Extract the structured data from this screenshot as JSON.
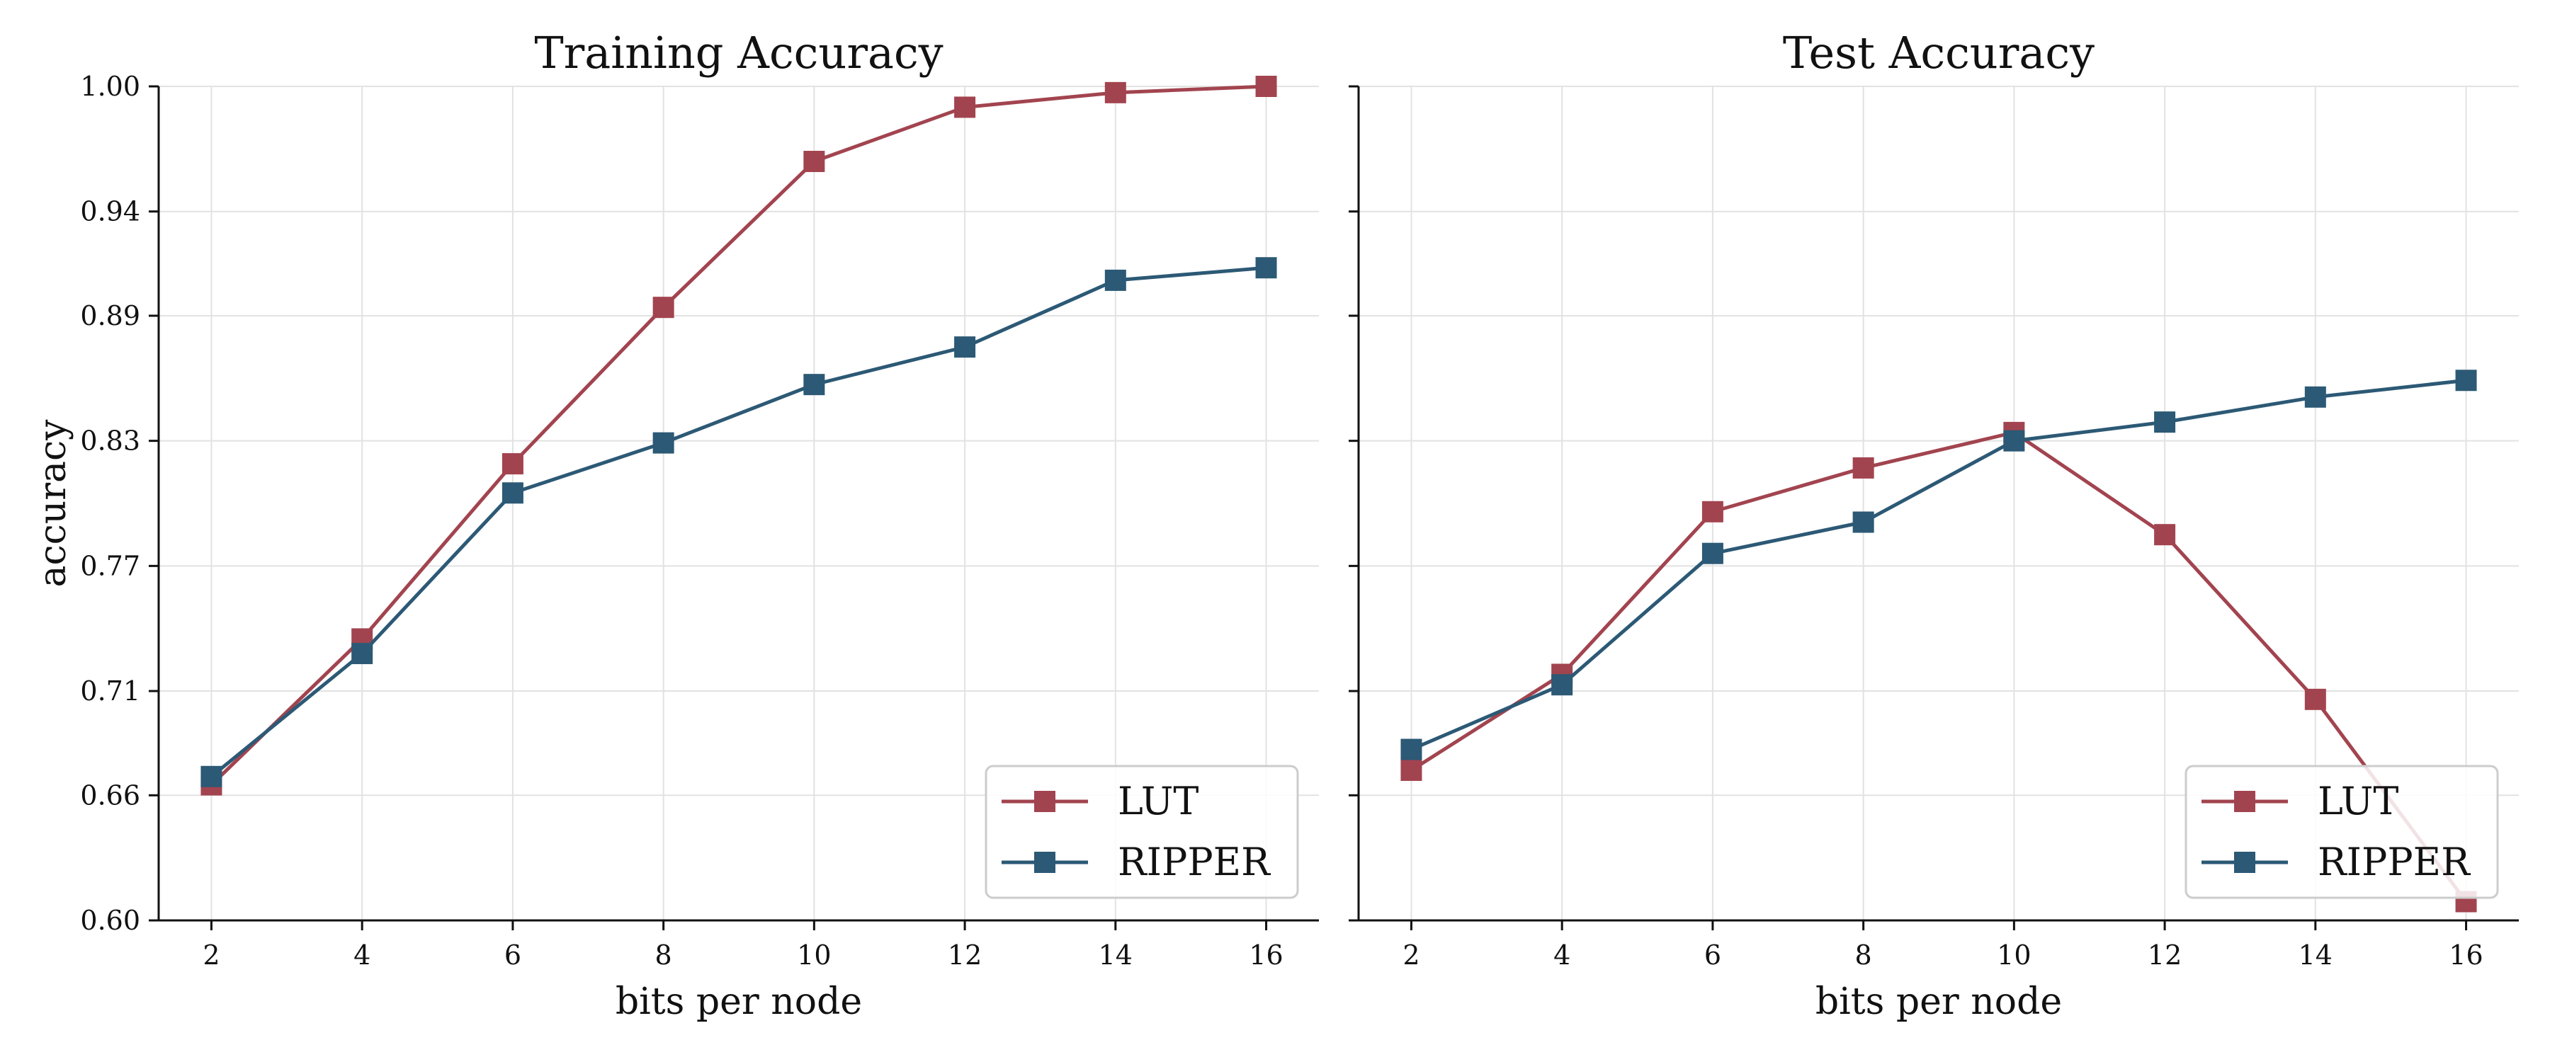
{
  "colors": {
    "LUT": "#a2444f",
    "RIPPER": "#2c5975",
    "grid": "#e2e2e2",
    "axis": "#111111",
    "legend_border": "#cccccc"
  },
  "chart_data": [
    {
      "type": "line",
      "title": "Training Accuracy",
      "xlabel": "bits per node",
      "ylabel": "accuracy",
      "x": [
        2,
        4,
        6,
        8,
        10,
        12,
        14,
        16
      ],
      "x_tick_labels": [
        "2",
        "4",
        "6",
        "8",
        "10",
        "12",
        "14",
        "16"
      ],
      "y_tick_values": [
        0.6,
        0.66,
        0.71,
        0.77,
        0.83,
        0.89,
        0.94,
        1.0
      ],
      "y_tick_labels": [
        "0.60",
        "0.66",
        "0.71",
        "0.77",
        "0.83",
        "0.89",
        "0.94",
        "1.00"
      ],
      "xlim": [
        1.3,
        16.7
      ],
      "ylim": [
        0.6,
        1.0
      ],
      "grid": true,
      "legend": "bottom-right",
      "marker": "square",
      "series": [
        {
          "name": "LUT",
          "values": [
            0.665,
            0.735,
            0.819,
            0.894,
            0.964,
            0.99,
            0.997,
            1.0
          ]
        },
        {
          "name": "RIPPER",
          "values": [
            0.669,
            0.728,
            0.805,
            0.829,
            0.857,
            0.875,
            0.907,
            0.913
          ]
        }
      ]
    },
    {
      "type": "line",
      "title": "Test Accuracy",
      "xlabel": "bits per node",
      "ylabel": "",
      "x": [
        2,
        4,
        6,
        8,
        10,
        12,
        14,
        16
      ],
      "x_tick_labels": [
        "2",
        "4",
        "6",
        "8",
        "10",
        "12",
        "14",
        "16"
      ],
      "y_tick_values": [
        0.6,
        0.66,
        0.71,
        0.77,
        0.83,
        0.89,
        0.94,
        1.0
      ],
      "y_tick_labels": [
        "",
        "",
        "",
        "",
        "",
        "",
        "",
        ""
      ],
      "xlim": [
        1.3,
        16.7
      ],
      "ylim": [
        0.6,
        1.0
      ],
      "grid": true,
      "legend": "bottom-right",
      "marker": "square",
      "series": [
        {
          "name": "LUT",
          "values": [
            0.672,
            0.718,
            0.796,
            0.817,
            0.834,
            0.785,
            0.706,
            0.609
          ]
        },
        {
          "name": "RIPPER",
          "values": [
            0.682,
            0.713,
            0.776,
            0.791,
            0.83,
            0.839,
            0.851,
            0.859
          ]
        }
      ]
    }
  ]
}
